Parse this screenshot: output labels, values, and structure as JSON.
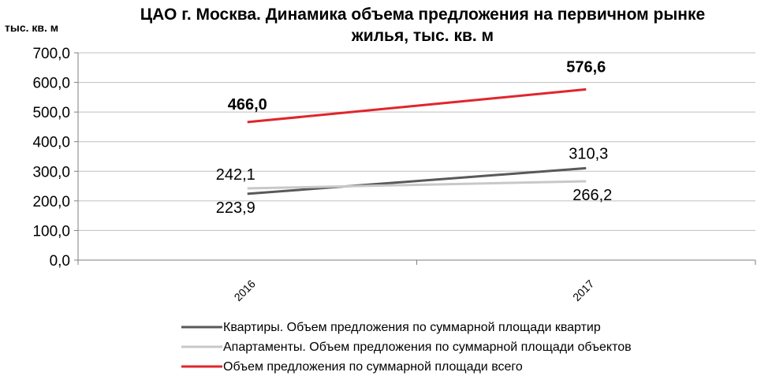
{
  "chart_data": {
    "type": "line",
    "title_line1": "ЦАО г. Москва. Динамика объема предложения на первичном рынке",
    "title_line2": "жилья, тыс. кв. м",
    "ylabel": "тыс. кв. м",
    "categories": [
      "2016",
      "2017"
    ],
    "ylim": [
      0,
      700
    ],
    "yticks": [
      "0,0",
      "100,0",
      "200,0",
      "300,0",
      "400,0",
      "500,0",
      "600,0",
      "700,0"
    ],
    "grid": true,
    "legend_position": "bottom",
    "series": [
      {
        "name": "Квартиры. Объем предложения по суммарной площади  квартир",
        "values": [
          223.9,
          310.3
        ],
        "labels": [
          "223,9",
          "310,3"
        ],
        "color": "#595959",
        "bold_labels": false
      },
      {
        "name": "Апартаменты. Объем предложения по суммарной площади  объектов",
        "values": [
          242.1,
          266.2
        ],
        "labels": [
          "242,1",
          "266,2"
        ],
        "color": "#c8c8c8",
        "bold_labels": false
      },
      {
        "name": "Объем предложения по суммарной площади  всего",
        "values": [
          466.0,
          576.6
        ],
        "labels": [
          "466,0",
          "576,6"
        ],
        "color": "#e0252b",
        "bold_labels": true
      }
    ]
  }
}
